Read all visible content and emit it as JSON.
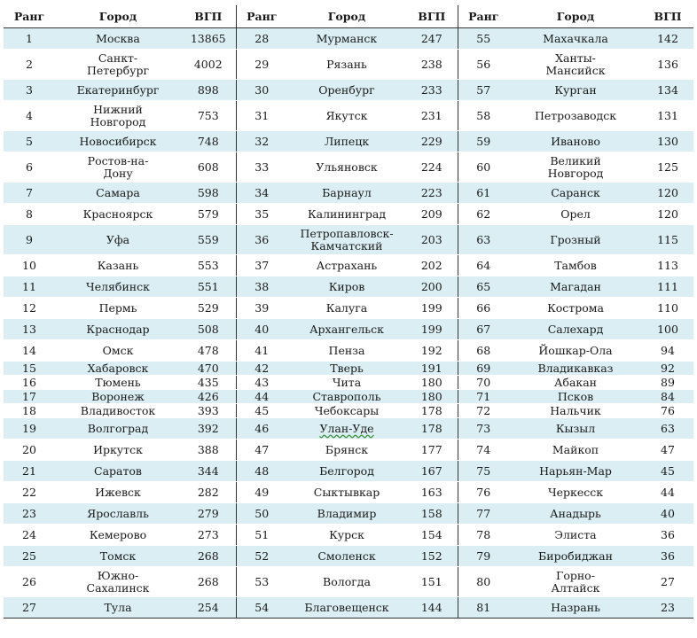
{
  "headers": {
    "rank": "Ранг",
    "city": "Город",
    "gdp": "ВГП"
  },
  "columns": [
    [
      [
        "1",
        "Москва",
        "13865"
      ],
      [
        "2",
        "Санкт-\nПетербург",
        "4002"
      ],
      [
        "3",
        "Екатеринбург",
        "898"
      ],
      [
        "4",
        "Нижний\nНовгород",
        "753"
      ],
      [
        "5",
        "Новосибирск",
        "748"
      ],
      [
        "6",
        "Ростов-на-\nДону",
        "608"
      ],
      [
        "7",
        "Самара",
        "598"
      ],
      [
        "8",
        "Красноярск",
        "579"
      ],
      [
        "9",
        "Уфа",
        "559"
      ],
      [
        "10",
        "Казань",
        "553"
      ],
      [
        "11",
        "Челябинск",
        "551"
      ],
      [
        "12",
        "Пермь",
        "529"
      ],
      [
        "13",
        "Краснодар",
        "508"
      ],
      [
        "14",
        "Омск",
        "478"
      ],
      [
        "15",
        "Хабаровск",
        "470"
      ],
      [
        "16",
        "Тюмень",
        "435"
      ],
      [
        "17",
        "Воронеж",
        "426"
      ],
      [
        "18",
        "Владивосток",
        "393"
      ],
      [
        "19",
        "Волгоград",
        "392"
      ],
      [
        "20",
        "Иркутск",
        "388"
      ],
      [
        "21",
        "Саратов",
        "344"
      ],
      [
        "22",
        "Ижевск",
        "282"
      ],
      [
        "23",
        "Ярославль",
        "279"
      ],
      [
        "24",
        "Кемерово",
        "273"
      ],
      [
        "25",
        "Томск",
        "268"
      ],
      [
        "26",
        "Южно-\nСахалинск",
        "268"
      ],
      [
        "27",
        "Тула",
        "254"
      ]
    ],
    [
      [
        "28",
        "Мурманск",
        "247"
      ],
      [
        "29",
        "Рязань",
        "238"
      ],
      [
        "30",
        "Оренбург",
        "233"
      ],
      [
        "31",
        "Якутск",
        "231"
      ],
      [
        "32",
        "Липецк",
        "229"
      ],
      [
        "33",
        "Ульяновск",
        "224"
      ],
      [
        "34",
        "Барнаул",
        "223"
      ],
      [
        "35",
        "Калининград",
        "209"
      ],
      [
        "36",
        "Петропавловск-\nКамчатский",
        "203"
      ],
      [
        "37",
        "Астрахань",
        "202"
      ],
      [
        "38",
        "Киров",
        "200"
      ],
      [
        "39",
        "Калуга",
        "199"
      ],
      [
        "40",
        "Архангельск",
        "199"
      ],
      [
        "41",
        "Пенза",
        "192"
      ],
      [
        "42",
        "Тверь",
        "191"
      ],
      [
        "43",
        "Чита",
        "180"
      ],
      [
        "44",
        "Ставрополь",
        "180"
      ],
      [
        "45",
        "Чебоксары",
        "178"
      ],
      [
        "46",
        "Улан-Уде",
        "178"
      ],
      [
        "47",
        "Брянск",
        "177"
      ],
      [
        "48",
        "Белгород",
        "167"
      ],
      [
        "49",
        "Сыктывкар",
        "163"
      ],
      [
        "50",
        "Владимир",
        "158"
      ],
      [
        "51",
        "Курск",
        "154"
      ],
      [
        "52",
        "Смоленск",
        "152"
      ],
      [
        "53",
        "Вологда",
        "151"
      ],
      [
        "54",
        "Благовещенск",
        "144"
      ]
    ],
    [
      [
        "55",
        "Махачкала",
        "142"
      ],
      [
        "56",
        "Ханты-\nМансийск",
        "136"
      ],
      [
        "57",
        "Курган",
        "134"
      ],
      [
        "58",
        "Петрозаводск",
        "131"
      ],
      [
        "59",
        "Иваново",
        "130"
      ],
      [
        "60",
        "Великий\nНовгород",
        "125"
      ],
      [
        "61",
        "Саранск",
        "120"
      ],
      [
        "62",
        "Орел",
        "120"
      ],
      [
        "63",
        "Грозный",
        "115"
      ],
      [
        "64",
        "Тамбов",
        "113"
      ],
      [
        "65",
        "Магадан",
        "111"
      ],
      [
        "66",
        "Кострома",
        "110"
      ],
      [
        "67",
        "Салехард",
        "100"
      ],
      [
        "68",
        "Йошкар-Ола",
        "94"
      ],
      [
        "69",
        "Владикавказ",
        "92"
      ],
      [
        "70",
        "Абакан",
        "89"
      ],
      [
        "71",
        "Псков",
        "84"
      ],
      [
        "72",
        "Нальчик",
        "76"
      ],
      [
        "73",
        "Кызыл",
        "63"
      ],
      [
        "74",
        "Майкоп",
        "47"
      ],
      [
        "75",
        "Нарьян-Мар",
        "45"
      ],
      [
        "76",
        "Черкесск",
        "44"
      ],
      [
        "77",
        "Анадырь",
        "40"
      ],
      [
        "78",
        "Элиста",
        "36"
      ],
      [
        "79",
        "Биробиджан",
        "36"
      ],
      [
        "80",
        "Горно-\nАлтайск",
        "27"
      ],
      [
        "81",
        "Назрань",
        "23"
      ]
    ]
  ]
}
